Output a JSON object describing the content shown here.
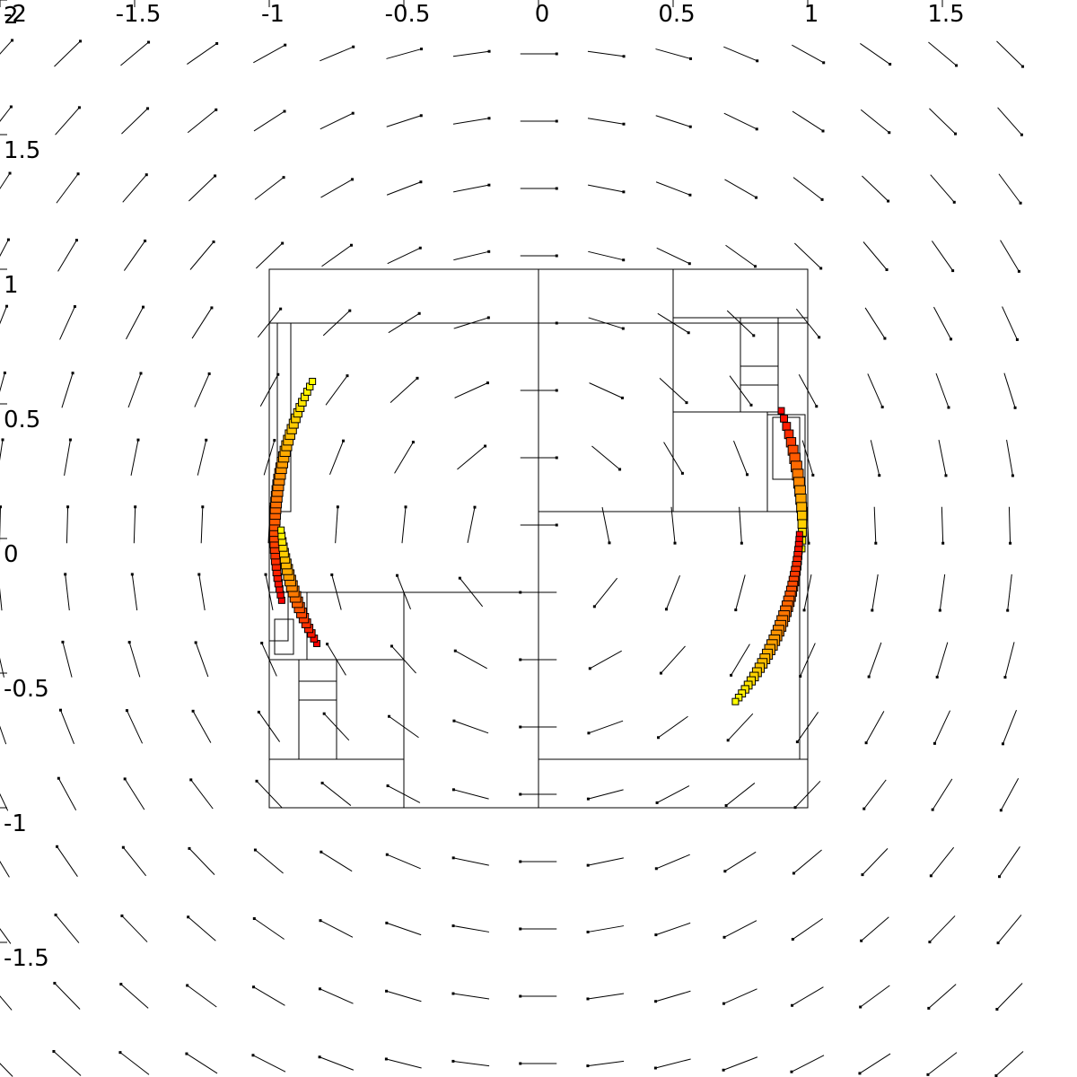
{
  "chart_data": {
    "type": "scatter",
    "title": "",
    "xlabel": "",
    "ylabel": "",
    "xlim": [
      -2,
      2
    ],
    "ylim": [
      -2,
      2
    ],
    "grid": false,
    "x_ticks": [
      {
        "value": -2,
        "label": "-2"
      },
      {
        "value": -1.5,
        "label": "-1.5"
      },
      {
        "value": -1,
        "label": "-1"
      },
      {
        "value": -0.5,
        "label": "-0.5"
      },
      {
        "value": 0,
        "label": "0"
      },
      {
        "value": 0.5,
        "label": "0.5"
      },
      {
        "value": 1,
        "label": "1"
      },
      {
        "value": 1.5,
        "label": "1.5"
      }
    ],
    "y_ticks": [
      {
        "value": 2,
        "label": "2"
      },
      {
        "value": 1.5,
        "label": "1.5"
      },
      {
        "value": 1,
        "label": "1"
      },
      {
        "value": 0.5,
        "label": "0.5"
      },
      {
        "value": 0,
        "label": "0"
      },
      {
        "value": -0.5,
        "label": "-0.5"
      },
      {
        "value": -1,
        "label": "-1"
      },
      {
        "value": -1.5,
        "label": "-1.5"
      }
    ],
    "vector_field": {
      "description_free": true,
      "x_range": [
        -2.0,
        1.75
      ],
      "y_range": [
        -1.95,
        1.8
      ],
      "step": 0.25,
      "glyph_length": 0.135,
      "dot_color": "#000000",
      "line_color": "#000000"
    },
    "quadtree_cells": [
      {
        "x0": -1.0,
        "x1": 1.0,
        "y0": 0.8,
        "y1": 1.0
      },
      {
        "x0": -1.0,
        "x1": 0.0,
        "y0": -0.2,
        "y1": 0.8
      },
      {
        "x0": 0.0,
        "x1": 1.0,
        "y0": 0.1,
        "y1": 1.0
      },
      {
        "x0": 0.0,
        "x1": 0.5,
        "y0": 0.1,
        "y1": 1.0
      },
      {
        "x0": 0.5,
        "x1": 1.0,
        "y0": 0.1,
        "y1": 0.82
      },
      {
        "x0": 0.5,
        "x1": 0.85,
        "y0": 0.1,
        "y1": 0.47
      },
      {
        "x0": 0.75,
        "x1": 0.89,
        "y0": 0.47,
        "y1": 0.82
      },
      {
        "x0": 0.75,
        "x1": 0.89,
        "y0": 0.57,
        "y1": 0.64
      },
      {
        "x0": 0.85,
        "x1": 0.99,
        "y0": 0.1,
        "y1": 0.46
      },
      {
        "x0": 0.87,
        "x1": 0.97,
        "y0": 0.22,
        "y1": 0.45
      },
      {
        "x0": 0.0,
        "x1": 1.0,
        "y0": -1.0,
        "y1": 0.1
      },
      {
        "x0": 0.0,
        "x1": 1.0,
        "y0": -1.0,
        "y1": -0.82
      },
      {
        "x0": 0.0,
        "x1": 0.97,
        "y0": -0.82,
        "y1": 0.1
      },
      {
        "x0": -1.0,
        "x1": 0.0,
        "y0": -1.0,
        "y1": -0.2
      },
      {
        "x0": -0.5,
        "x1": 0.0,
        "y0": -1.0,
        "y1": -0.2
      },
      {
        "x0": -1.0,
        "x1": -0.5,
        "y0": -1.0,
        "y1": -0.82
      },
      {
        "x0": -1.0,
        "x1": -0.5,
        "y0": -0.82,
        "y1": -0.45
      },
      {
        "x0": -0.89,
        "x1": -0.75,
        "y0": -0.82,
        "y1": -0.45
      },
      {
        "x0": -0.89,
        "x1": -0.75,
        "y0": -0.6,
        "y1": -0.53
      },
      {
        "x0": -1.0,
        "x1": -0.5,
        "y0": -0.45,
        "y1": -0.2
      },
      {
        "x0": -1.0,
        "x1": -0.86,
        "y0": -0.45,
        "y1": -0.2
      },
      {
        "x0": -1.0,
        "x1": -0.93,
        "y0": -0.38,
        "y1": -0.2
      },
      {
        "x0": -0.98,
        "x1": -0.91,
        "y0": -0.43,
        "y1": -0.3
      },
      {
        "x0": -0.97,
        "x1": -0.92,
        "y0": 0.1,
        "y1": 0.8
      }
    ],
    "series": [
      {
        "marker": "square",
        "fill_start": "#ff0000",
        "fill_end": "#ffff00",
        "arc_center": [
          0.22,
          0.02
        ],
        "radius": 1.2,
        "angle_deg_start": 192,
        "angle_deg_end": 152,
        "count": 40
      },
      {
        "marker": "square",
        "fill_start": "#ff0000",
        "fill_end": "#ffff00",
        "arc_center": [
          -0.32,
          0.03
        ],
        "radius": 1.3,
        "angle_deg_start": 20,
        "angle_deg_end": -3,
        "count": 18
      },
      {
        "marker": "square",
        "fill_start": "#ff0000",
        "fill_end": "#ffff00",
        "arc_center": [
          0.06,
          0.12
        ],
        "radius": 1.02,
        "angle_deg_start": 210,
        "angle_deg_end": 185,
        "count": 22
      },
      {
        "marker": "square",
        "fill_start": "#ff0000",
        "fill_end": "#ffff00",
        "arc_center": [
          -0.05,
          0.05
        ],
        "radius": 1.02,
        "angle_deg_start": -2,
        "angle_deg_end": -40,
        "count": 36
      }
    ]
  }
}
